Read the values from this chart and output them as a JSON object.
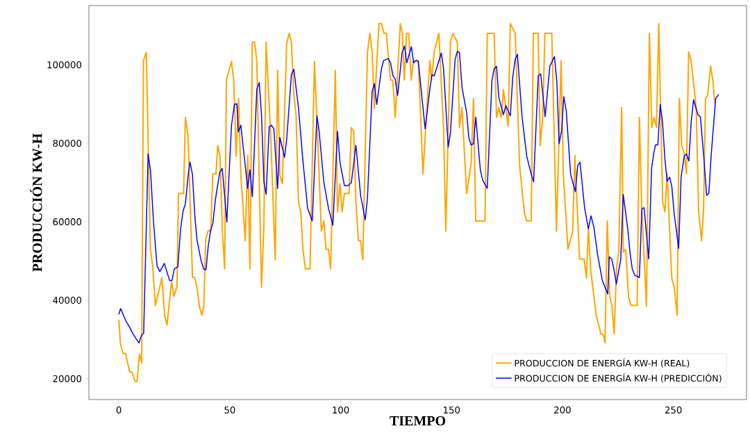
{
  "chart_data": {
    "type": "line",
    "xlabel": "TIEMPO",
    "ylabel": "PRODUCCIÓN KW-H",
    "xlim": [
      -13.5,
      283
    ],
    "ylim": [
      14700,
      115100
    ],
    "xticks": [
      0,
      50,
      100,
      150,
      200,
      250
    ],
    "yticks": [
      20000,
      40000,
      60000,
      80000,
      100000
    ],
    "legend": "bottom right",
    "series": [
      {
        "name": "PRODUCCION DE ENERGÍA KW-H (REAL)",
        "color": "#ffa500",
        "x": [
          0,
          0.7,
          1.8,
          3.0,
          4.9,
          5.9,
          7.3,
          8.2,
          9.3,
          10.3,
          11.1,
          12.4,
          14.2,
          15.2,
          16.5,
          19.4,
          20.7,
          21.7,
          23.8,
          24.8,
          26.2,
          26.9,
          29.2,
          30.0,
          31.2,
          33.2,
          34.2,
          35.2,
          36.3,
          37.4,
          38.3,
          39.2,
          40.2,
          41.5,
          42.3,
          43.8,
          44.6,
          45.6,
          46.7,
          47.7,
          48.5,
          50.8,
          51.8,
          52.9,
          54.0,
          55.0,
          57.0,
          58.1,
          59.1,
          60.2,
          61.2,
          62.2,
          64.3,
          65.4,
          66.4,
          68.5,
          70.5,
          71.6,
          72.6,
          73.7,
          75.7,
          76.8,
          77.8,
          78.9,
          79.9,
          81.0,
          82.0,
          83.0,
          84.1,
          86.2,
          88.2,
          90.3,
          91.3,
          92.4,
          93.4,
          94.5,
          95.5,
          97.6,
          98.6,
          99.7,
          100.7,
          101.7,
          103.8,
          104.8,
          105.9,
          106.9,
          108.0,
          109.0,
          110.0,
          112.1,
          113.2,
          114.2,
          115.2,
          117.3,
          118.4,
          119.6,
          120.6,
          122.5,
          123.5,
          124.6,
          126.9,
          127.8,
          128.7,
          129.7,
          130.7,
          131.8,
          132.8,
          133.9,
          135.0,
          136.0,
          137.1,
          140.2,
          141.0,
          142.2,
          144.3,
          146.4,
          147.4,
          149.5,
          150.6,
          152.6,
          153.6,
          154.7,
          156.8,
          158.8,
          159.9,
          160.9,
          165.1,
          166.1,
          169.2,
          170.3,
          171.3,
          172.4,
          173.4,
          175.5,
          176.5,
          178.7,
          180.7,
          182.8,
          183.8,
          185.9,
          186.9,
          189.0,
          190.0,
          191.1,
          192.1,
          195.2,
          197.3,
          199.4,
          200.4,
          202.5,
          204.6,
          205.6,
          207.7,
          209.8,
          210.8,
          211.7,
          212.7,
          215.3,
          217.4,
          218.4,
          219.2,
          220.2,
          221.3,
          222.3,
          223.3,
          224.4,
          225.4,
          226.7,
          227.4,
          228.5,
          229.8,
          230.9,
          233.7,
          234.7,
          235.8,
          237.9,
          239.2,
          240.3,
          241.3,
          242.4,
          243.4,
          245.2,
          246.2,
          247.2,
          249.3,
          250.4,
          251.7,
          252.7,
          253.8,
          254.8,
          255.9,
          256.9,
          258.0,
          260.3,
          261.4,
          262.7,
          263.6,
          264.5,
          265.5,
          266.8,
          267.8,
          268.8
        ],
        "values": [
          35000,
          29100,
          26500,
          26400,
          21800,
          21700,
          19300,
          19300,
          26300,
          24000,
          101000,
          103200,
          53000,
          49000,
          38700,
          45700,
          35900,
          33700,
          44800,
          41000,
          43400,
          67200,
          67200,
          86600,
          82000,
          45900,
          45800,
          43400,
          38500,
          36200,
          38500,
          55600,
          57700,
          57700,
          72200,
          72200,
          79400,
          76900,
          57400,
          48000,
          96100,
          100900,
          96100,
          76700,
          91400,
          72000,
          55200,
          76900,
          48000,
          105800,
          105800,
          101000,
          43300,
          59100,
          105800,
          81700,
          50300,
          98600,
          72000,
          69700,
          105500,
          108000,
          105800,
          92600,
          87300,
          65000,
          62600,
          53000,
          48000,
          48000,
          100900,
          72000,
          57600,
          60200,
          53000,
          53000,
          48000,
          98600,
          62500,
          69700,
          62500,
          67200,
          67200,
          84000,
          83100,
          65000,
          55200,
          55200,
          50300,
          103300,
          108000,
          103300,
          88900,
          110500,
          110500,
          108000,
          108000,
          96100,
          96100,
          86600,
          110500,
          108000,
          96100,
          108000,
          108000,
          96100,
          101000,
          101000,
          101000,
          88000,
          72200,
          101000,
          96300,
          103300,
          108000,
          83800,
          57600,
          105800,
          108000,
          105800,
          84000,
          89100,
          67200,
          74600,
          91400,
          60200,
          60200,
          108000,
          108000,
          86600,
          89100,
          86600,
          93700,
          84300,
          110500,
          108000,
          74300,
          62500,
          60200,
          60200,
          108000,
          108000,
          79400,
          86600,
          108000,
          108000,
          57600,
          101000,
          72000,
          53000,
          57600,
          76900,
          50500,
          50500,
          45700,
          58400,
          47800,
          35900,
          31400,
          31200,
          29200,
          60200,
          41100,
          38700,
          31400,
          48200,
          52600,
          89100,
          52300,
          53000,
          40800,
          38700,
          38700,
          86600,
          62600,
          38500,
          108000,
          84000,
          86600,
          84000,
          110500,
          65000,
          62600,
          72200,
          45600,
          43400,
          36200,
          91400,
          79400,
          77700,
          72200,
          103300,
          101000,
          89100,
          62600,
          55200,
          62600,
          91400,
          92300,
          99700,
          96100,
          90000
        ]
      },
      {
        "name": "PRODUCCION DE ENERGÍA KW-H (PREDICCIÓN)",
        "color": "#0000ff",
        "x": [
          0,
          0.8,
          3.2,
          4.7,
          6.3,
          9.1,
          10.1,
          11.2,
          13.2,
          14.3,
          15.6,
          17.2,
          18.5,
          20.5,
          22.9,
          24.0,
          25.0,
          26.6,
          27.8,
          28.9,
          30.0,
          31.4,
          32.1,
          33.2,
          34.2,
          35.2,
          37.0,
          38.3,
          39.3,
          40.3,
          41.4,
          42.4,
          43.5,
          45.5,
          46.6,
          47.6,
          48.7,
          49.7,
          50.8,
          52.1,
          53.2,
          53.9,
          55.0,
          58.1,
          59.1,
          60.2,
          62.2,
          63.3,
          64.3,
          65.4,
          66.4,
          67.8,
          68.8,
          69.9,
          71.6,
          72.6,
          74.7,
          75.7,
          77.8,
          78.9,
          81.0,
          83.0,
          85.1,
          87.2,
          89.3,
          90.3,
          92.4,
          94.5,
          96.5,
          98.6,
          99.7,
          101.7,
          103.3,
          104.8,
          106.9,
          109.0,
          111.1,
          112.1,
          114.2,
          115.2,
          116.3,
          118.4,
          119.4,
          121.5,
          122.5,
          123.6,
          124.6,
          125.7,
          127.7,
          128.8,
          129.8,
          131.9,
          132.9,
          134.0,
          135.0,
          138.1,
          140.2,
          141.2,
          142.2,
          145.4,
          146.4,
          148.5,
          149.5,
          151.6,
          152.6,
          153.6,
          154.7,
          156.8,
          157.8,
          158.8,
          159.9,
          160.9,
          163.0,
          164.1,
          166.1,
          168.2,
          169.2,
          170.3,
          171.3,
          173.4,
          174.5,
          176.5,
          177.6,
          178.7,
          179.7,
          181.8,
          183.9,
          186.0,
          187.0,
          189.1,
          190.2,
          192.2,
          194.3,
          196.4,
          197.5,
          198.5,
          199.6,
          200.6,
          201.7,
          203.7,
          205.8,
          206.9,
          207.9,
          210.0,
          211.7,
          212.9,
          214.2,
          215.9,
          218.0,
          220.4,
          221.1,
          222.2,
          223.2,
          224.3,
          226.3,
          227.4,
          229.5,
          230.5,
          231.5,
          232.6,
          234.7,
          235.8,
          236.8,
          238.9,
          240.2,
          241.3,
          242.0,
          243.0,
          244.1,
          245.1,
          246.2,
          247.2,
          248.3,
          249.3,
          250.4,
          252.4,
          253.5,
          254.9,
          255.9,
          257.0,
          258.0,
          259.1,
          261.1,
          262.2,
          263.7,
          265.0,
          266.0,
          267.1,
          269.1,
          270.5
        ],
        "values": [
          36400,
          37900,
          34700,
          33300,
          31500,
          29100,
          31000,
          31600,
          77300,
          72900,
          60200,
          48800,
          47300,
          49400,
          45000,
          45100,
          48000,
          48500,
          57900,
          62600,
          64600,
          72600,
          75200,
          72000,
          62000,
          55500,
          50300,
          47900,
          47800,
          53800,
          57900,
          59600,
          65500,
          72600,
          73600,
          67300,
          59900,
          72000,
          84600,
          89900,
          90100,
          82900,
          84600,
          68500,
          73300,
          66400,
          93700,
          95500,
          87500,
          70200,
          67000,
          84200,
          84600,
          83700,
          68500,
          81500,
          76400,
          81100,
          97500,
          98900,
          89000,
          75500,
          63500,
          60200,
          87000,
          83100,
          70200,
          63500,
          59100,
          83100,
          75200,
          69200,
          69200,
          69900,
          79500,
          66700,
          60500,
          66000,
          93100,
          95200,
          89900,
          99000,
          101100,
          101600,
          100500,
          97200,
          96400,
          92200,
          103100,
          104800,
          100500,
          104600,
          100500,
          101100,
          100900,
          83700,
          93700,
          97500,
          97200,
          103000,
          99000,
          79000,
          82600,
          101400,
          103400,
          103100,
          94300,
          87800,
          81400,
          79600,
          79900,
          86700,
          73200,
          70500,
          68500,
          95800,
          99000,
          99600,
          91700,
          87300,
          89600,
          87000,
          96900,
          101400,
          102700,
          86700,
          76700,
          72000,
          70200,
          97200,
          97700,
          86800,
          99600,
          102100,
          95500,
          79900,
          83100,
          91900,
          88400,
          72000,
          67700,
          74300,
          75200,
          63500,
          58200,
          61500,
          58500,
          51400,
          45000,
          41600,
          51100,
          50500,
          47900,
          44100,
          50500,
          67000,
          57900,
          52000,
          47900,
          46400,
          45800,
          63300,
          63600,
          50500,
          73700,
          77900,
          79600,
          79600,
          89900,
          85500,
          76100,
          70300,
          71400,
          69000,
          62000,
          53200,
          71400,
          76700,
          77300,
          75500,
          85200,
          91100,
          87300,
          86700,
          76700,
          66700,
          67300,
          77300,
          91400,
          92500
        ]
      }
    ]
  }
}
